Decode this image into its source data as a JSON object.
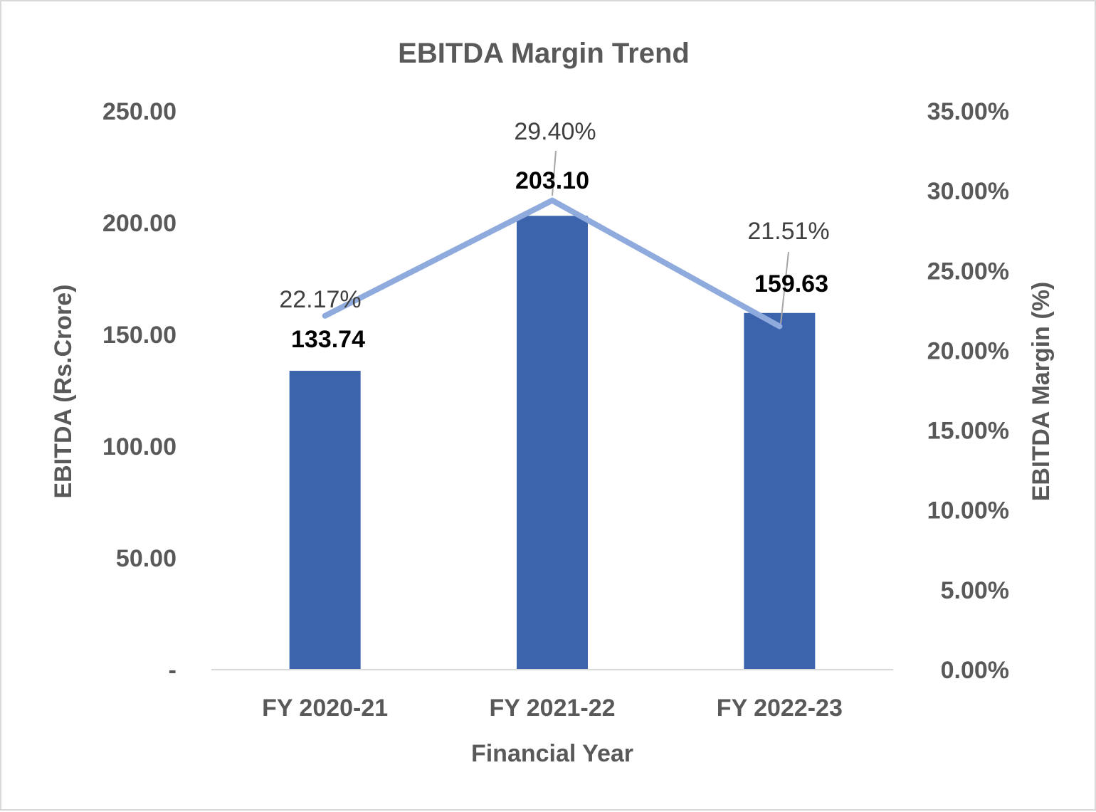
{
  "chart_data": {
    "type": "bar",
    "title": "EBITDA Margin Trend",
    "xlabel": "Financial Year",
    "ylabel": "EBITDA (Rs.Crore)",
    "y2label": "EBITDA Margin (%)",
    "categories": [
      "FY 2020-21",
      "FY 2021-22",
      "FY 2022-23"
    ],
    "series": [
      {
        "type": "bar",
        "axis": "left",
        "values": [
          133.74,
          203.1,
          159.63
        ],
        "labels": [
          "133.74",
          "203.10",
          "159.63"
        ],
        "color": "#3c64ad"
      },
      {
        "type": "line",
        "axis": "right",
        "values": [
          22.17,
          29.4,
          21.51
        ],
        "labels": [
          "22.17%",
          "29.40%",
          "21.51%"
        ],
        "color": "#8faadc"
      }
    ],
    "ylim": [
      0,
      250
    ],
    "yticks": [
      0,
      50,
      100,
      150,
      200,
      250
    ],
    "yticklabels": [
      "-",
      "50.00",
      "100.00",
      "150.00",
      "200.00",
      "250.00"
    ],
    "y2lim": [
      0,
      35
    ],
    "y2ticks": [
      0,
      5,
      10,
      15,
      20,
      25,
      30,
      35
    ],
    "y2ticklabels": [
      "0.00%",
      "5.00%",
      "10.00%",
      "15.00%",
      "20.00%",
      "25.00%",
      "30.00%",
      "35.00%"
    ],
    "grid": false,
    "legend": "none"
  }
}
